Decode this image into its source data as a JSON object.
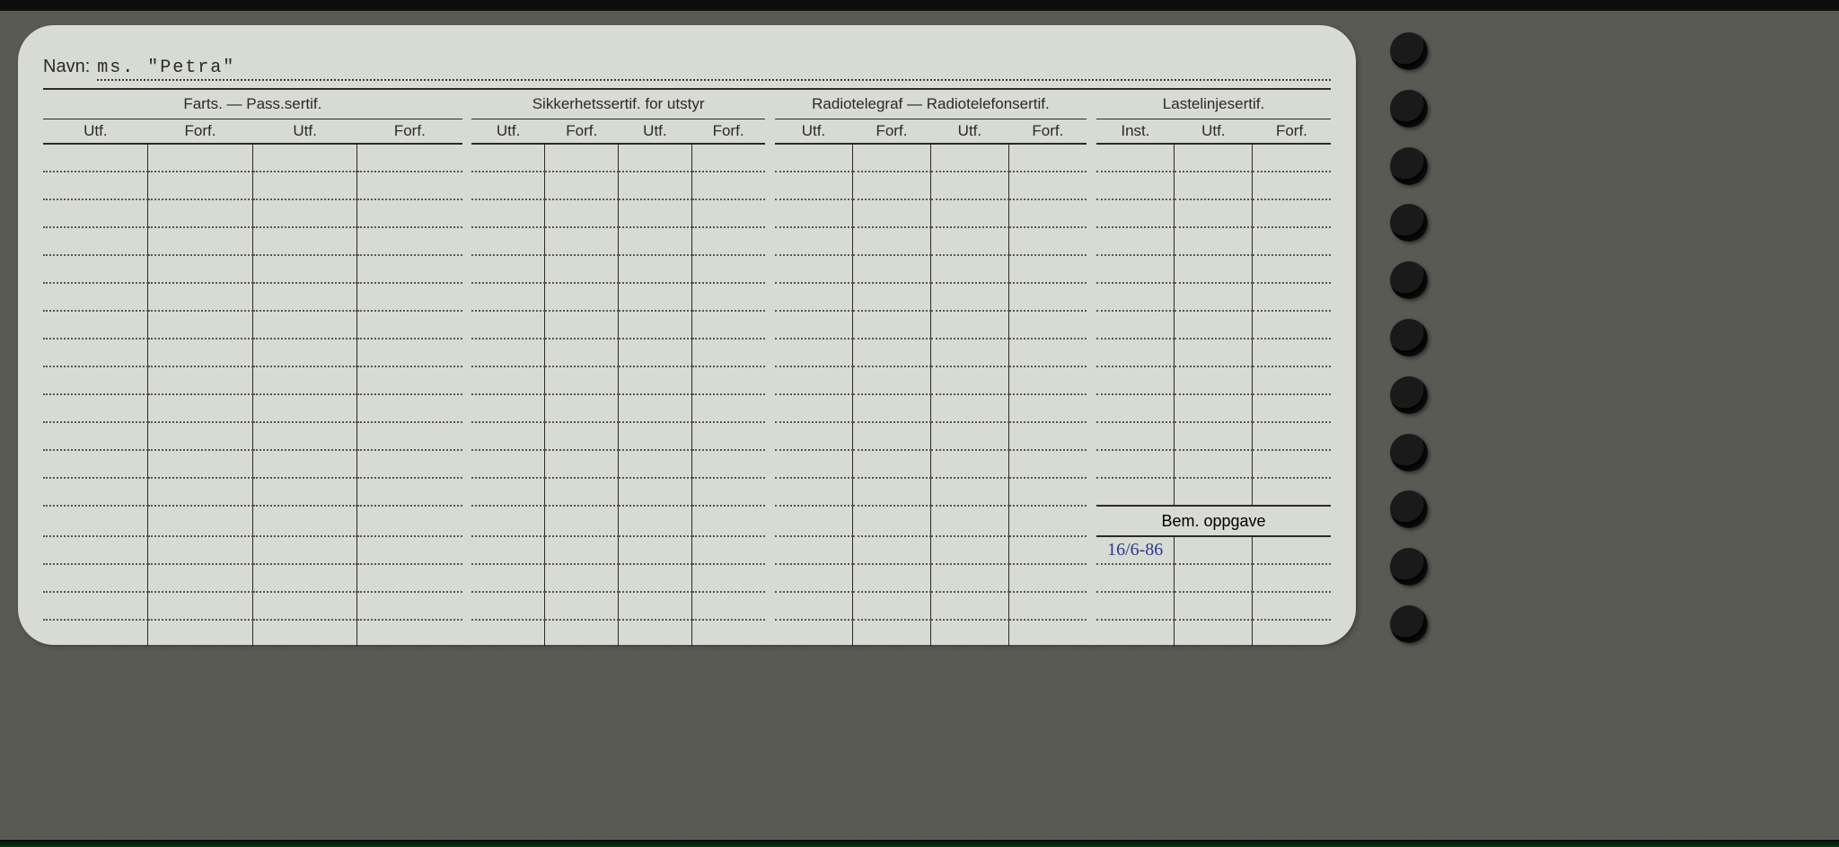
{
  "page": {
    "background_color": "#5a5a55",
    "card_color": "#d8dad4",
    "text_color": "#2a2a2a",
    "dotted_color": "#555555",
    "handwritten_color": "#2b3a88"
  },
  "navn": {
    "label": "Navn:",
    "value": "ms.  \"Petra\""
  },
  "groups": [
    {
      "title": "Farts. — Pass.sertif.",
      "cols": [
        "Utf.",
        "Forf.",
        "Utf.",
        "Forf."
      ]
    },
    {
      "title": "Sikkerhetssertif. for utstyr",
      "cols": [
        "Utf.",
        "Forf.",
        "Utf.",
        "Forf."
      ]
    },
    {
      "title": "Radiotelegraf — Radiotelefonsertif.",
      "cols": [
        "Utf.",
        "Forf.",
        "Utf.",
        "Forf."
      ]
    },
    {
      "title": "Lastelinjesertif.",
      "cols": [
        "Inst.",
        "Utf.",
        "Forf."
      ]
    }
  ],
  "bem_oppgave_label": "Bem. oppgave",
  "body_rows_before_bem": 13,
  "body_rows_after_bem": 4,
  "handwritten_entry": {
    "row": 1,
    "col": 0,
    "text": "16/6-86"
  },
  "binder_holes": 11
}
